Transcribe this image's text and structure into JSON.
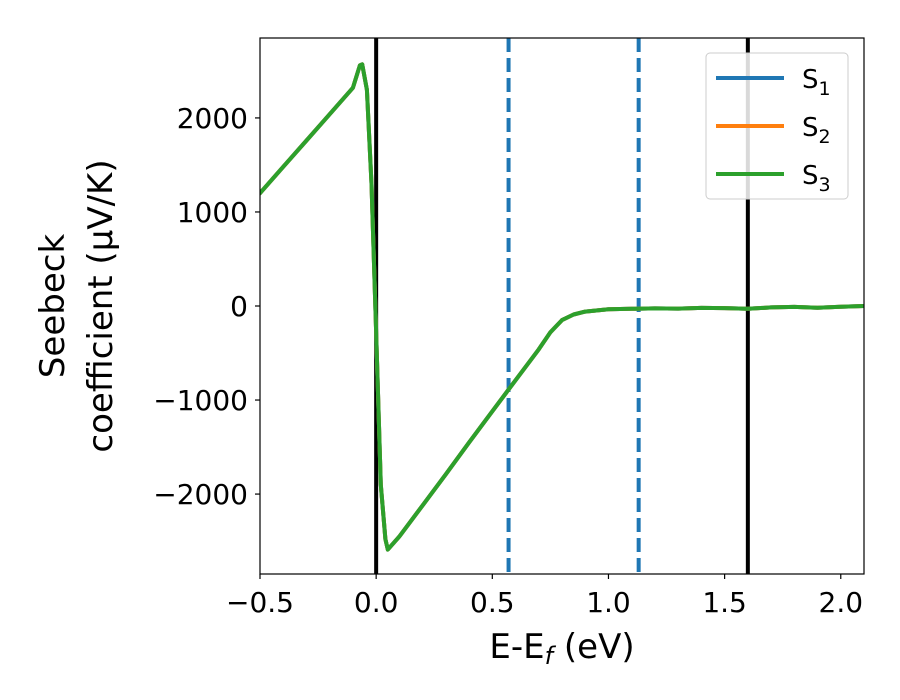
{
  "chart_data": {
    "type": "line",
    "xlabel": "E-E_f (eV)",
    "xlabel_parts": {
      "pre": "E-E",
      "sub": "f",
      "post": " (eV)"
    },
    "ylabel_lines": [
      "Seebeck",
      "coefficient  (μV/K)"
    ],
    "xlim": [
      -0.5,
      2.1
    ],
    "ylim": [
      -2850,
      2850
    ],
    "xticks": [
      -0.5,
      0.0,
      0.5,
      1.0,
      1.5,
      2.0
    ],
    "xtick_labels": [
      "−0.5",
      "0.0",
      "0.5",
      "1.0",
      "1.5",
      "2.0"
    ],
    "yticks": [
      2000,
      1000,
      0,
      -1000,
      -2000
    ],
    "ytick_labels": [
      "2000",
      "1000",
      "0",
      "−1000",
      "−2000"
    ],
    "grid": false,
    "legend_position": "top-right",
    "vlines": [
      {
        "x": 0.0,
        "style": "solid",
        "color": "#000000"
      },
      {
        "x": 1.6,
        "style": "solid",
        "color": "#000000"
      },
      {
        "x": 0.57,
        "style": "dashed",
        "color": "#1f77b4"
      },
      {
        "x": 1.13,
        "style": "dashed",
        "color": "#1f77b4"
      }
    ],
    "x": [
      -0.5,
      -0.4,
      -0.3,
      -0.2,
      -0.1,
      -0.07,
      -0.06,
      -0.04,
      -0.02,
      0.0,
      0.02,
      0.04,
      0.05,
      0.1,
      0.2,
      0.3,
      0.4,
      0.5,
      0.6,
      0.7,
      0.75,
      0.8,
      0.85,
      0.9,
      1.0,
      1.1,
      1.2,
      1.3,
      1.4,
      1.5,
      1.6,
      1.7,
      1.8,
      1.9,
      2.0,
      2.1
    ],
    "series": [
      {
        "name": "S_1",
        "label": {
          "base": "S",
          "sub": "1"
        },
        "color": "#1f77b4",
        "values": [
          1200,
          1480,
          1760,
          2040,
          2320,
          2560,
          2570,
          2300,
          1300,
          -300,
          -1900,
          -2480,
          -2590,
          -2450,
          -2120,
          -1790,
          -1450,
          -1120,
          -790,
          -460,
          -280,
          -150,
          -90,
          -60,
          -35,
          -30,
          -25,
          -28,
          -20,
          -22,
          -30,
          -15,
          -10,
          -18,
          -8,
          0
        ]
      },
      {
        "name": "S_2",
        "label": {
          "base": "S",
          "sub": "2"
        },
        "color": "#ff7f0e",
        "values": [
          1200,
          1480,
          1760,
          2040,
          2320,
          2560,
          2570,
          2300,
          1300,
          -300,
          -1900,
          -2480,
          -2590,
          -2450,
          -2120,
          -1790,
          -1450,
          -1120,
          -790,
          -460,
          -280,
          -150,
          -90,
          -60,
          -35,
          -30,
          -25,
          -28,
          -20,
          -22,
          -30,
          -15,
          -10,
          -18,
          -8,
          0
        ]
      },
      {
        "name": "S_3",
        "label": {
          "base": "S",
          "sub": "3"
        },
        "color": "#2ca02c",
        "values": [
          1200,
          1480,
          1760,
          2040,
          2320,
          2560,
          2570,
          2300,
          1300,
          -300,
          -1900,
          -2480,
          -2590,
          -2450,
          -2120,
          -1790,
          -1450,
          -1120,
          -790,
          -460,
          -280,
          -150,
          -90,
          -60,
          -35,
          -30,
          -25,
          -28,
          -20,
          -22,
          -30,
          -15,
          -10,
          -18,
          -8,
          0
        ]
      }
    ]
  }
}
